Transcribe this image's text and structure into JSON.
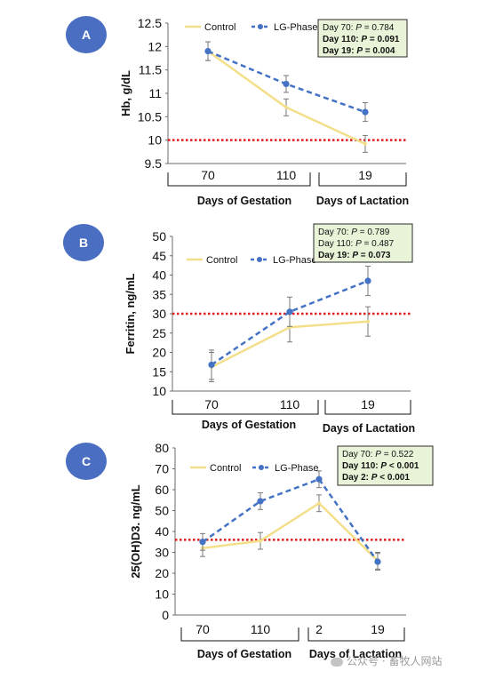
{
  "colors": {
    "control": "#f3df8a",
    "lg_phase": "#4472c4",
    "badge": "#4a6fc2",
    "threshold": "#e0191b",
    "stats_bg": "#e8f3d8",
    "stats_border": "#2b2b2b",
    "axis": "#6b6b6b",
    "error_bar": "#7a7a7a"
  },
  "watermark": "公众号 · 畜牧人网站",
  "chart_data": [
    {
      "id": "A",
      "panel_label": "A",
      "type": "line",
      "ylabel": "Hb, g/dL",
      "ylim": [
        9.5,
        12.5
      ],
      "yticks": [
        "9.5",
        "10",
        "10.5",
        "11",
        "11.5",
        "12",
        "12.5"
      ],
      "categories": [
        "70",
        "110",
        "19"
      ],
      "groups": [
        "Days of Gestation",
        "Days of Lactation"
      ],
      "threshold": 10,
      "legend": [
        "Control",
        "LG-Phase"
      ],
      "legend_position": "top",
      "stats": [
        {
          "prefix": "Day 70: ",
          "p": "P",
          "rest": " = 0.784",
          "bold": false
        },
        {
          "prefix": "Day 110: ",
          "p": "P",
          "rest": " = 0.091",
          "bold": true
        },
        {
          "prefix": "Day 19: ",
          "p": "P",
          "rest": " = 0.004",
          "bold": true
        }
      ],
      "series": [
        {
          "name": "Control",
          "values": [
            11.9,
            10.7,
            9.92
          ],
          "errors": [
            0.2,
            0.18,
            0.18
          ]
        },
        {
          "name": "LG-Phase",
          "values": [
            11.9,
            11.2,
            10.6
          ],
          "errors": [
            0.2,
            0.18,
            0.2
          ]
        }
      ]
    },
    {
      "id": "B",
      "panel_label": "B",
      "type": "line",
      "ylabel": "Ferritin, ng/mL",
      "ylim": [
        10,
        50
      ],
      "yticks": [
        "10",
        "15",
        "20",
        "25",
        "30",
        "35",
        "40",
        "45",
        "50"
      ],
      "categories": [
        "70",
        "110",
        "19"
      ],
      "groups": [
        "Days of Gestation",
        "Days of Lactation"
      ],
      "threshold": 30,
      "legend": [
        "Control",
        "LG-Phase"
      ],
      "legend_position": "top-left",
      "stats": [
        {
          "prefix": "Day 70: ",
          "p": "P",
          "rest": " = 0.789",
          "bold": false
        },
        {
          "prefix": "Day 110: ",
          "p": "P",
          "rest": " = 0.487",
          "bold": false
        },
        {
          "prefix": "Day 19: ",
          "p": "P",
          "rest": " = 0.073",
          "bold": true
        }
      ],
      "series": [
        {
          "name": "Control",
          "values": [
            16.2,
            26.5,
            28.0
          ],
          "errors": [
            3.8,
            3.8,
            3.8
          ]
        },
        {
          "name": "LG-Phase",
          "values": [
            16.8,
            30.5,
            38.5
          ],
          "errors": [
            3.8,
            3.8,
            3.8
          ]
        }
      ]
    },
    {
      "id": "C",
      "panel_label": "C",
      "type": "line",
      "ylabel": "25(OH)D3. ng/mL",
      "ylim": [
        0,
        80
      ],
      "yticks": [
        "0",
        "10",
        "20",
        "30",
        "40",
        "50",
        "60",
        "70",
        "80"
      ],
      "categories": [
        "70",
        "110",
        "2",
        "19"
      ],
      "groups": [
        "Days of Gestation",
        "Days of Lactation"
      ],
      "threshold": 36,
      "legend": [
        "Control",
        "LG-Phase"
      ],
      "legend_position": "top",
      "stats": [
        {
          "prefix": "Day 70: ",
          "p": "P",
          "rest": " = 0.522",
          "bold": false
        },
        {
          "prefix": "Day 110: ",
          "p": "P",
          "rest": " < 0.001",
          "bold": true
        },
        {
          "prefix": "Day 2: ",
          "p": "P",
          "rest": " < 0.001",
          "bold": true
        }
      ],
      "series": [
        {
          "name": "Control",
          "values": [
            32.0,
            35.5,
            53.5,
            26.0
          ],
          "errors": [
            4,
            4,
            4,
            4
          ]
        },
        {
          "name": "LG-Phase",
          "values": [
            35.0,
            54.5,
            65.0,
            25.5
          ],
          "errors": [
            4,
            4,
            4,
            4
          ]
        }
      ]
    }
  ]
}
